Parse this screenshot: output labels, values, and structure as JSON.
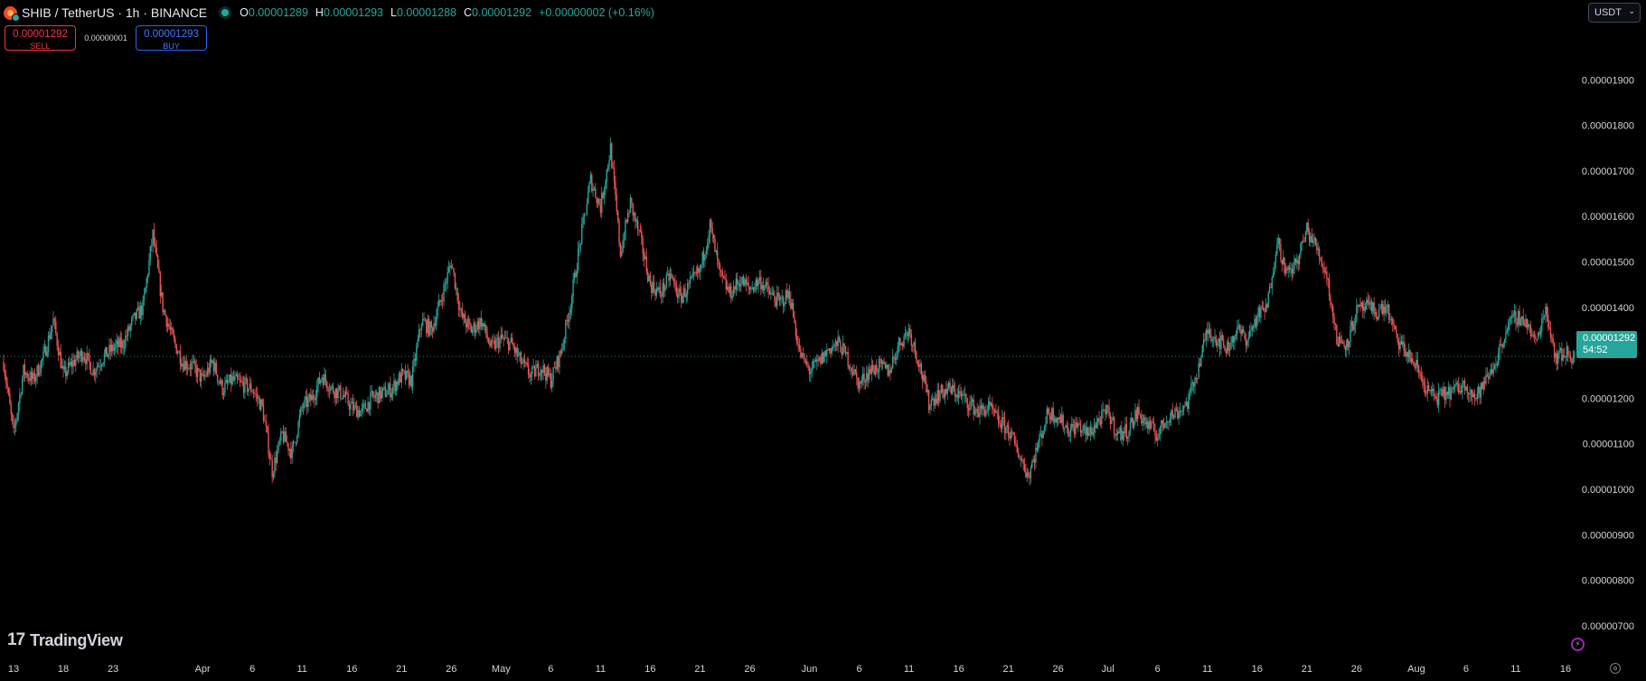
{
  "header": {
    "symbol": "SHIB",
    "pair": "SHIB / TetherUS · 1h · BINANCE",
    "ohlc": {
      "o_label": "O",
      "o": "0.00001289",
      "h_label": "H",
      "h": "0.00001293",
      "l_label": "L",
      "l": "0.00001288",
      "c_label": "C",
      "c": "0.00001292",
      "change": "+0.00000002 (+0.16%)"
    }
  },
  "trade": {
    "sell_price": "0.00001292",
    "sell_label": "SELL",
    "spread": "0.00000001",
    "buy_price": "0.00001293",
    "buy_label": "BUY"
  },
  "currency_select": {
    "value": "USDT"
  },
  "last_price_tag": {
    "price": "0.00001292",
    "countdown": "54:52"
  },
  "watermark": {
    "logo": "17",
    "text": "TradingView"
  },
  "colors": {
    "up": "#26a69a",
    "down": "#ef5350",
    "background": "#000000",
    "axis_text": "#d1d4dc"
  },
  "chart_data": {
    "type": "line",
    "yticks": [
      7e-06,
      8e-06,
      9e-06,
      1e-05,
      1.1e-05,
      1.2e-05,
      1.3e-05,
      1.4e-05,
      1.5e-05,
      1.6e-05,
      1.7e-05,
      1.8e-05,
      1.9e-05
    ],
    "ytick_labels": [
      "0.00000700",
      "0.00000800",
      "0.00000900",
      "0.00001000",
      "0.00001100",
      "0.00001200",
      "0.00001300",
      "0.00001400",
      "0.00001500",
      "0.00001600",
      "0.00001700",
      "0.00001800",
      "0.00001900"
    ],
    "ylim": [
      6.6e-06,
      2.01e-05
    ],
    "xlim": [
      "2024-03-12",
      "2024-08-17"
    ],
    "xticks": [
      {
        "date": "2024-03-13",
        "label": "13"
      },
      {
        "date": "2024-03-18",
        "label": "18"
      },
      {
        "date": "2024-03-23",
        "label": "23"
      },
      {
        "date": "2024-04-01",
        "label": "Apr"
      },
      {
        "date": "2024-04-06",
        "label": "6"
      },
      {
        "date": "2024-04-11",
        "label": "11"
      },
      {
        "date": "2024-04-16",
        "label": "16"
      },
      {
        "date": "2024-04-21",
        "label": "21"
      },
      {
        "date": "2024-04-26",
        "label": "26"
      },
      {
        "date": "2024-05-01",
        "label": "May"
      },
      {
        "date": "2024-05-06",
        "label": "6"
      },
      {
        "date": "2024-05-11",
        "label": "11"
      },
      {
        "date": "2024-05-16",
        "label": "16"
      },
      {
        "date": "2024-05-21",
        "label": "21"
      },
      {
        "date": "2024-05-26",
        "label": "26"
      },
      {
        "date": "2024-06-01",
        "label": "Jun"
      },
      {
        "date": "2024-06-06",
        "label": "6"
      },
      {
        "date": "2024-06-11",
        "label": "11"
      },
      {
        "date": "2024-06-16",
        "label": "16"
      },
      {
        "date": "2024-06-21",
        "label": "21"
      },
      {
        "date": "2024-06-26",
        "label": "26"
      },
      {
        "date": "2024-07-01",
        "label": "Jul"
      },
      {
        "date": "2024-07-06",
        "label": "6"
      },
      {
        "date": "2024-07-11",
        "label": "11"
      },
      {
        "date": "2024-07-16",
        "label": "16"
      },
      {
        "date": "2024-07-21",
        "label": "21"
      },
      {
        "date": "2024-07-26",
        "label": "26"
      },
      {
        "date": "2024-08-01",
        "label": "Aug"
      },
      {
        "date": "2024-08-06",
        "label": "6"
      },
      {
        "date": "2024-08-11",
        "label": "11"
      },
      {
        "date": "2024-08-16",
        "label": "16"
      }
    ],
    "last_price": 1.292e-05,
    "price_path": [
      [
        "2024-03-12",
        1.28e-05
      ],
      [
        "2024-03-13",
        1.12e-05
      ],
      [
        "2024-03-14",
        1.26e-05
      ],
      [
        "2024-03-15",
        1.24e-05
      ],
      [
        "2024-03-16",
        1.29e-05
      ],
      [
        "2024-03-17",
        1.37e-05
      ],
      [
        "2024-03-18",
        1.25e-05
      ],
      [
        "2024-03-19",
        1.28e-05
      ],
      [
        "2024-03-20",
        1.3e-05
      ],
      [
        "2024-03-21",
        1.26e-05
      ],
      [
        "2024-03-22",
        1.29e-05
      ],
      [
        "2024-03-23",
        1.31e-05
      ],
      [
        "2024-03-24",
        1.32e-05
      ],
      [
        "2024-03-25",
        1.37e-05
      ],
      [
        "2024-03-26",
        1.4e-05
      ],
      [
        "2024-03-27",
        1.56e-05
      ],
      [
        "2024-03-28",
        1.4e-05
      ],
      [
        "2024-03-29",
        1.33e-05
      ],
      [
        "2024-03-30",
        1.28e-05
      ],
      [
        "2024-03-31",
        1.27e-05
      ],
      [
        "2024-04-01",
        1.24e-05
      ],
      [
        "2024-04-02",
        1.28e-05
      ],
      [
        "2024-04-03",
        1.22e-05
      ],
      [
        "2024-04-04",
        1.24e-05
      ],
      [
        "2024-04-05",
        1.23e-05
      ],
      [
        "2024-04-06",
        1.22e-05
      ],
      [
        "2024-04-07",
        1.18e-05
      ],
      [
        "2024-04-08",
        1.04e-05
      ],
      [
        "2024-04-09",
        1.12e-05
      ],
      [
        "2024-04-10",
        1.08e-05
      ],
      [
        "2024-04-11",
        1.18e-05
      ],
      [
        "2024-04-12",
        1.2e-05
      ],
      [
        "2024-04-13",
        1.25e-05
      ],
      [
        "2024-04-14",
        1.22e-05
      ],
      [
        "2024-04-15",
        1.21e-05
      ],
      [
        "2024-04-16",
        1.18e-05
      ],
      [
        "2024-04-17",
        1.17e-05
      ],
      [
        "2024-04-18",
        1.2e-05
      ],
      [
        "2024-04-19",
        1.21e-05
      ],
      [
        "2024-04-20",
        1.22e-05
      ],
      [
        "2024-04-21",
        1.25e-05
      ],
      [
        "2024-04-22",
        1.24e-05
      ],
      [
        "2024-04-23",
        1.37e-05
      ],
      [
        "2024-04-24",
        1.35e-05
      ],
      [
        "2024-04-25",
        1.42e-05
      ],
      [
        "2024-04-26",
        1.5e-05
      ],
      [
        "2024-04-27",
        1.38e-05
      ],
      [
        "2024-04-28",
        1.35e-05
      ],
      [
        "2024-04-29",
        1.37e-05
      ],
      [
        "2024-04-30",
        1.31e-05
      ],
      [
        "2024-05-01",
        1.33e-05
      ],
      [
        "2024-05-02",
        1.32e-05
      ],
      [
        "2024-05-03",
        1.28e-05
      ],
      [
        "2024-05-04",
        1.25e-05
      ],
      [
        "2024-05-05",
        1.27e-05
      ],
      [
        "2024-05-06",
        1.24e-05
      ],
      [
        "2024-05-07",
        1.3e-05
      ],
      [
        "2024-05-08",
        1.41e-05
      ],
      [
        "2024-05-09",
        1.55e-05
      ],
      [
        "2024-05-10",
        1.68e-05
      ],
      [
        "2024-05-11",
        1.62e-05
      ],
      [
        "2024-05-12",
        1.75e-05
      ],
      [
        "2024-05-13",
        1.52e-05
      ],
      [
        "2024-05-14",
        1.63e-05
      ],
      [
        "2024-05-15",
        1.55e-05
      ],
      [
        "2024-05-16",
        1.45e-05
      ],
      [
        "2024-05-17",
        1.43e-05
      ],
      [
        "2024-05-18",
        1.47e-05
      ],
      [
        "2024-05-19",
        1.42e-05
      ],
      [
        "2024-05-20",
        1.45e-05
      ],
      [
        "2024-05-21",
        1.48e-05
      ],
      [
        "2024-05-22",
        1.58e-05
      ],
      [
        "2024-05-23",
        1.47e-05
      ],
      [
        "2024-05-24",
        1.43e-05
      ],
      [
        "2024-05-25",
        1.46e-05
      ],
      [
        "2024-05-26",
        1.44e-05
      ],
      [
        "2024-05-27",
        1.46e-05
      ],
      [
        "2024-05-28",
        1.43e-05
      ],
      [
        "2024-05-29",
        1.41e-05
      ],
      [
        "2024-05-30",
        1.43e-05
      ],
      [
        "2024-05-31",
        1.3e-05
      ],
      [
        "2024-06-01",
        1.26e-05
      ],
      [
        "2024-06-02",
        1.28e-05
      ],
      [
        "2024-06-03",
        1.31e-05
      ],
      [
        "2024-06-04",
        1.32e-05
      ],
      [
        "2024-06-05",
        1.28e-05
      ],
      [
        "2024-06-06",
        1.23e-05
      ],
      [
        "2024-06-07",
        1.26e-05
      ],
      [
        "2024-06-08",
        1.27e-05
      ],
      [
        "2024-06-09",
        1.26e-05
      ],
      [
        "2024-06-10",
        1.32e-05
      ],
      [
        "2024-06-11",
        1.35e-05
      ],
      [
        "2024-06-12",
        1.28e-05
      ],
      [
        "2024-06-13",
        1.19e-05
      ],
      [
        "2024-06-14",
        1.21e-05
      ],
      [
        "2024-06-15",
        1.22e-05
      ],
      [
        "2024-06-16",
        1.21e-05
      ],
      [
        "2024-06-17",
        1.19e-05
      ],
      [
        "2024-06-18",
        1.17e-05
      ],
      [
        "2024-06-19",
        1.18e-05
      ],
      [
        "2024-06-20",
        1.15e-05
      ],
      [
        "2024-06-21",
        1.13e-05
      ],
      [
        "2024-06-22",
        1.08e-05
      ],
      [
        "2024-06-23",
        1.03e-05
      ],
      [
        "2024-06-24",
        1.1e-05
      ],
      [
        "2024-06-25",
        1.17e-05
      ],
      [
        "2024-06-26",
        1.16e-05
      ],
      [
        "2024-06-27",
        1.13e-05
      ],
      [
        "2024-06-28",
        1.14e-05
      ],
      [
        "2024-06-29",
        1.12e-05
      ],
      [
        "2024-06-30",
        1.15e-05
      ],
      [
        "2024-07-01",
        1.17e-05
      ],
      [
        "2024-07-02",
        1.12e-05
      ],
      [
        "2024-07-03",
        1.13e-05
      ],
      [
        "2024-07-04",
        1.17e-05
      ],
      [
        "2024-07-05",
        1.14e-05
      ],
      [
        "2024-07-06",
        1.12e-05
      ],
      [
        "2024-07-07",
        1.16e-05
      ],
      [
        "2024-07-08",
        1.17e-05
      ],
      [
        "2024-07-09",
        1.19e-05
      ],
      [
        "2024-07-10",
        1.26e-05
      ],
      [
        "2024-07-11",
        1.35e-05
      ],
      [
        "2024-07-12",
        1.33e-05
      ],
      [
        "2024-07-13",
        1.31e-05
      ],
      [
        "2024-07-14",
        1.35e-05
      ],
      [
        "2024-07-15",
        1.33e-05
      ],
      [
        "2024-07-16",
        1.38e-05
      ],
      [
        "2024-07-17",
        1.4e-05
      ],
      [
        "2024-07-18",
        1.55e-05
      ],
      [
        "2024-07-19",
        1.47e-05
      ],
      [
        "2024-07-20",
        1.5e-05
      ],
      [
        "2024-07-21",
        1.57e-05
      ],
      [
        "2024-07-22",
        1.53e-05
      ],
      [
        "2024-07-23",
        1.47e-05
      ],
      [
        "2024-07-24",
        1.33e-05
      ],
      [
        "2024-07-25",
        1.32e-05
      ],
      [
        "2024-07-26",
        1.39e-05
      ],
      [
        "2024-07-27",
        1.4e-05
      ],
      [
        "2024-07-28",
        1.39e-05
      ],
      [
        "2024-07-29",
        1.4e-05
      ],
      [
        "2024-07-30",
        1.33e-05
      ],
      [
        "2024-07-31",
        1.3e-05
      ],
      [
        "2024-08-01",
        1.27e-05
      ],
      [
        "2024-08-02",
        1.22e-05
      ],
      [
        "2024-08-03",
        1.2e-05
      ],
      [
        "2024-08-04",
        1.21e-05
      ],
      [
        "2024-08-05",
        1.22e-05
      ],
      [
        "2024-08-06",
        1.23e-05
      ],
      [
        "2024-08-07",
        1.2e-05
      ],
      [
        "2024-08-08",
        1.24e-05
      ],
      [
        "2024-08-09",
        1.28e-05
      ],
      [
        "2024-08-10",
        1.35e-05
      ],
      [
        "2024-08-11",
        1.38e-05
      ],
      [
        "2024-08-12",
        1.37e-05
      ],
      [
        "2024-08-13",
        1.32e-05
      ],
      [
        "2024-08-14",
        1.4e-05
      ],
      [
        "2024-08-15",
        1.29e-05
      ],
      [
        "2024-08-16",
        1.3e-05
      ],
      [
        "2024-08-17",
        1.29e-05
      ]
    ]
  }
}
